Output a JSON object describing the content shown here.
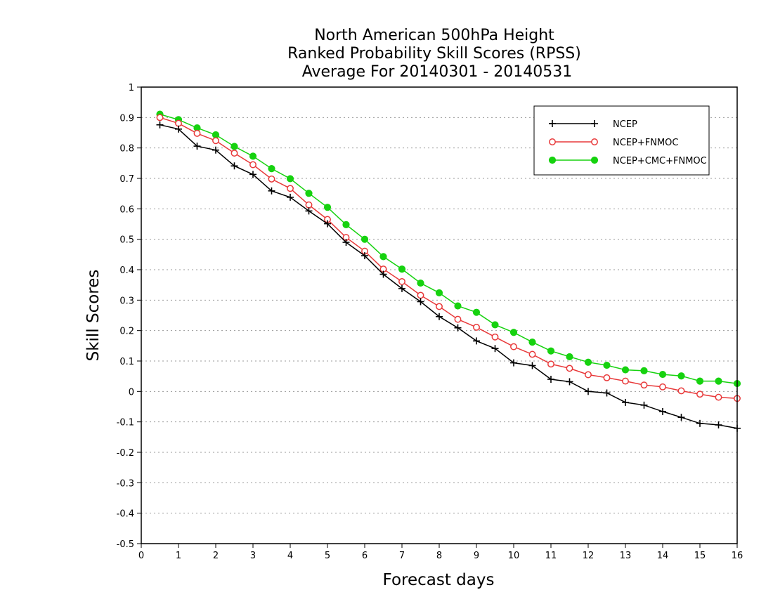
{
  "chart_data": {
    "type": "line",
    "title_lines": [
      "North American 500hPa Height",
      "Ranked Probability Skill Scores (RPSS)",
      "Average For 20140301 - 20140531"
    ],
    "xlabel": "Forecast days",
    "ylabel": "Skill Scores",
    "xlim": [
      0,
      16
    ],
    "ylim": [
      -0.5,
      1
    ],
    "xticks": [
      "0",
      "1",
      "2",
      "3",
      "4",
      "5",
      "6",
      "7",
      "8",
      "9",
      "10",
      "11",
      "12",
      "13",
      "14",
      "15",
      "16"
    ],
    "yticks": [
      "1",
      "0.9",
      "0.8",
      "0.7",
      "0.6",
      "0.5",
      "0.4",
      "0.3",
      "0.2",
      "0.1",
      "0",
      "-0.1",
      "-0.2",
      "-0.3",
      "-0.4",
      "-0.5"
    ],
    "grid": "dotted-horizontal",
    "legend_position": "top-right",
    "x": [
      0.5,
      1,
      1.5,
      2,
      2.5,
      3,
      3.5,
      4,
      4.5,
      5,
      5.5,
      6,
      6.5,
      7,
      7.5,
      8,
      8.5,
      9,
      9.5,
      10,
      10.5,
      11,
      11.5,
      12,
      12.5,
      13,
      13.5,
      14,
      14.5,
      15,
      15.5,
      16
    ],
    "series": [
      {
        "name": "NCEP",
        "color": "#000000",
        "marker": "plus",
        "values": [
          0.876,
          0.862,
          0.806,
          0.793,
          0.741,
          0.713,
          0.659,
          0.638,
          0.593,
          0.551,
          0.49,
          0.446,
          0.385,
          0.338,
          0.295,
          0.246,
          0.209,
          0.166,
          0.141,
          0.094,
          0.085,
          0.04,
          0.032,
          0.0,
          -0.005,
          -0.036,
          -0.045,
          -0.066,
          -0.085,
          -0.105,
          -0.11,
          -0.121
        ]
      },
      {
        "name": "NCEP+FNMOC",
        "color": "#e8393a",
        "marker": "open-circle",
        "values": [
          0.9,
          0.881,
          0.848,
          0.824,
          0.783,
          0.745,
          0.698,
          0.667,
          0.613,
          0.565,
          0.506,
          0.461,
          0.402,
          0.361,
          0.316,
          0.279,
          0.237,
          0.211,
          0.179,
          0.147,
          0.122,
          0.09,
          0.076,
          0.055,
          0.045,
          0.034,
          0.021,
          0.015,
          0.002,
          -0.009,
          -0.019,
          -0.023
        ]
      },
      {
        "name": "NCEP+CMC+FNMOC",
        "color": "#16d20f",
        "marker": "filled-circle",
        "values": [
          0.911,
          0.893,
          0.866,
          0.843,
          0.805,
          0.773,
          0.732,
          0.699,
          0.651,
          0.605,
          0.548,
          0.5,
          0.443,
          0.402,
          0.356,
          0.324,
          0.281,
          0.26,
          0.219,
          0.194,
          0.162,
          0.133,
          0.114,
          0.096,
          0.086,
          0.071,
          0.068,
          0.056,
          0.051,
          0.034,
          0.034,
          0.026
        ]
      }
    ]
  }
}
